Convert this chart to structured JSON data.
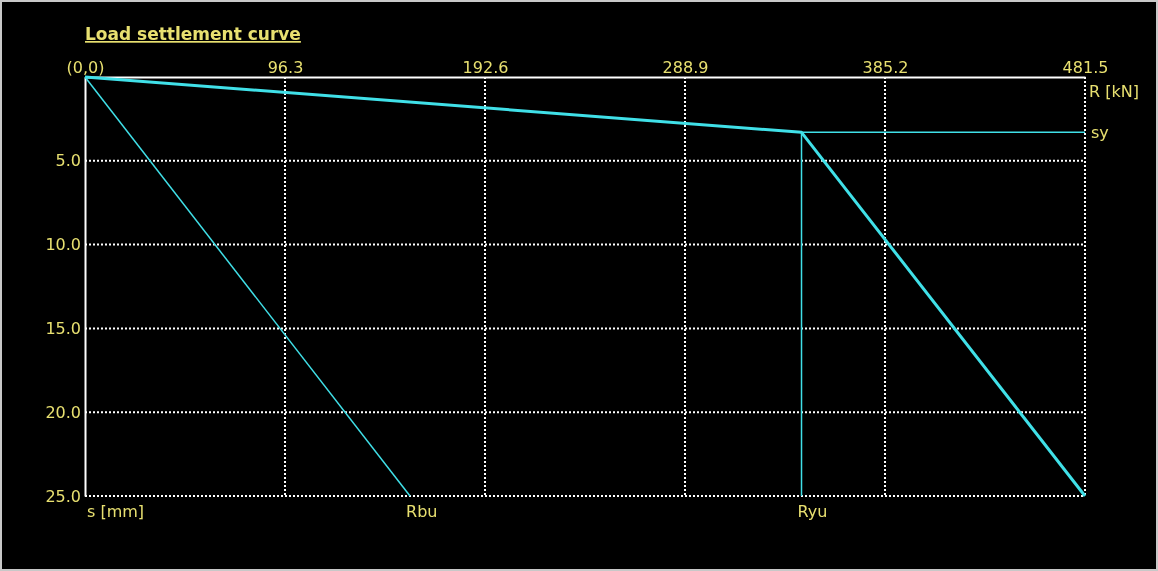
{
  "chart_data": {
    "type": "line",
    "title": "Load settlement curve",
    "xlabel": "R [kN]",
    "annotations": [
      "s [mm]"
    ],
    "xlim": [
      0,
      481.5
    ],
    "ylim": [
      25,
      0
    ],
    "xticks": [
      {
        "value": 0,
        "label": "(0,0)"
      },
      96.3,
      192.6,
      288.9,
      385.2,
      481.5
    ],
    "yticks": [
      {
        "value": 0,
        "label": null
      },
      {
        "value": 5,
        "label": "5.0"
      },
      {
        "value": 10,
        "label": "10.0"
      },
      {
        "value": 15,
        "label": "15.0"
      },
      {
        "value": 20,
        "label": "20.0"
      },
      {
        "value": 25,
        "label": "25.0"
      }
    ],
    "grid": true,
    "legend": false,
    "line_style": "solid",
    "marker": "none",
    "series": [
      {
        "color": "#40e0e8",
        "x": [
          0,
          345,
          481.5
        ],
        "values": [
          0,
          3.3,
          25
        ]
      },
      {
        "name": "Rbu",
        "color": "#40e0e8",
        "x": [
          0,
          156.5
        ],
        "values": [
          0,
          25
        ]
      },
      {
        "name": "Ryu",
        "color": "#40e0e8",
        "x": [
          345,
          345
        ],
        "values": [
          3.3,
          25
        ]
      },
      {
        "name": "sy",
        "color": "#40e0e8",
        "x": [
          345,
          481.5
        ],
        "values": [
          3.3,
          3.3
        ]
      }
    ]
  }
}
